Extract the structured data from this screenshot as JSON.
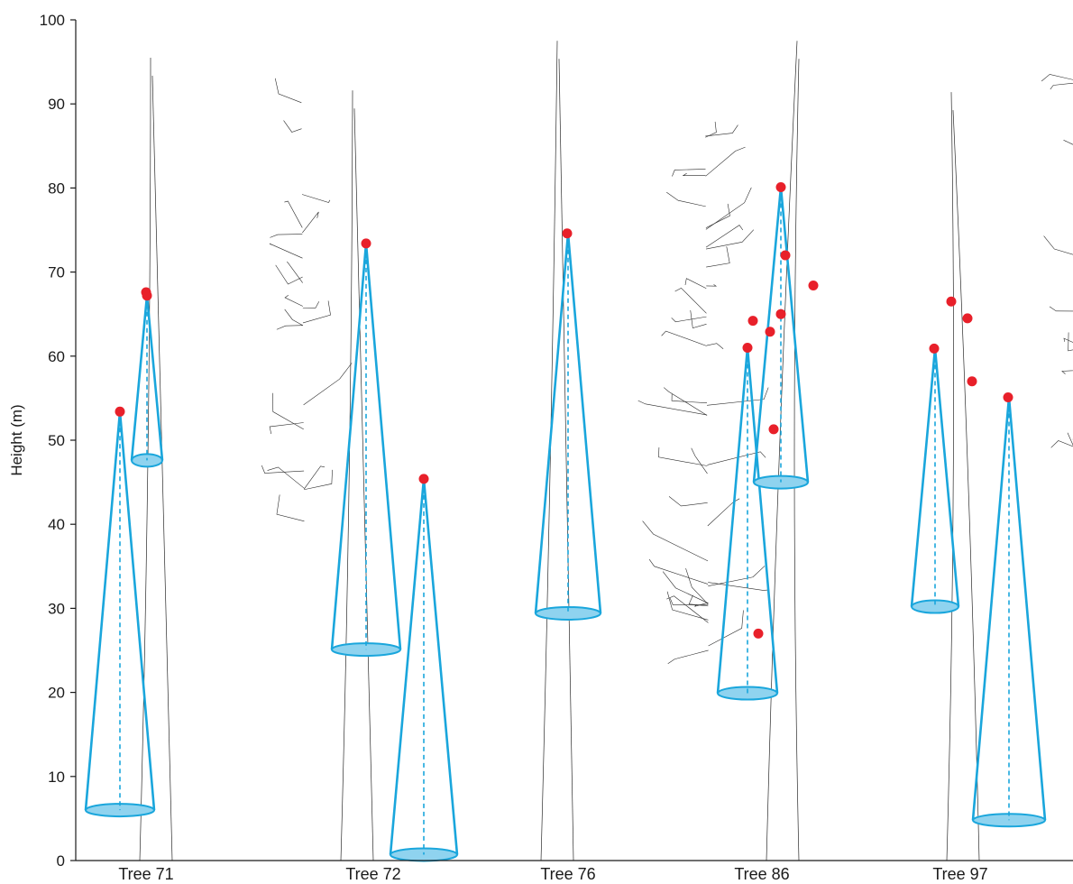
{
  "chart_data": {
    "type": "scatter",
    "ylabel": "Height (m)",
    "xlabel": "",
    "ylim": [
      0,
      100
    ],
    "yticks": [
      0,
      10,
      20,
      30,
      40,
      50,
      60,
      70,
      80,
      90,
      100
    ],
    "grid": false,
    "legend": "none",
    "categories": [
      "Tree 71",
      "Tree 72",
      "Tree 76",
      "Tree 86",
      "Tree 97"
    ],
    "colors": {
      "point": "#e8202a",
      "cone": "#1aa6dc",
      "cone_base_fill": "#8fd3ef",
      "axis": "#1a1a1a",
      "branches": "#2a2a2a"
    },
    "points": [
      {
        "tree": "Tree 71",
        "height": 53.4
      },
      {
        "tree": "Tree 71",
        "height": 67.6
      },
      {
        "tree": "Tree 71",
        "height": 67.2
      },
      {
        "tree": "Tree 72",
        "height": 73.4
      },
      {
        "tree": "Tree 72",
        "height": 45.4
      },
      {
        "tree": "Tree 76",
        "height": 74.6
      },
      {
        "tree": "Tree 86",
        "height": 80.1
      },
      {
        "tree": "Tree 86",
        "height": 72.0
      },
      {
        "tree": "Tree 86",
        "height": 68.4
      },
      {
        "tree": "Tree 86",
        "height": 65.0
      },
      {
        "tree": "Tree 86",
        "height": 64.2
      },
      {
        "tree": "Tree 86",
        "height": 62.9
      },
      {
        "tree": "Tree 86",
        "height": 61.0
      },
      {
        "tree": "Tree 86",
        "height": 51.3
      },
      {
        "tree": "Tree 86",
        "height": 27.0
      },
      {
        "tree": "Tree 97",
        "height": 66.5
      },
      {
        "tree": "Tree 97",
        "height": 64.5
      },
      {
        "tree": "Tree 97",
        "height": 60.9
      },
      {
        "tree": "Tree 97",
        "height": 57.0
      },
      {
        "tree": "Tree 97",
        "height": 55.1
      }
    ],
    "cones": [
      {
        "tree": "Tree 71",
        "apex_height": 53.4,
        "base_height": 6.0
      },
      {
        "tree": "Tree 71",
        "apex_height": 67.2,
        "base_height": 47.6
      },
      {
        "tree": "Tree 72",
        "apex_height": 73.4,
        "base_height": 25.1
      },
      {
        "tree": "Tree 72",
        "apex_height": 45.4,
        "base_height": 0.7
      },
      {
        "tree": "Tree 76",
        "apex_height": 74.6,
        "base_height": 29.4
      },
      {
        "tree": "Tree 86",
        "apex_height": 61.0,
        "base_height": 19.9
      },
      {
        "tree": "Tree 86",
        "apex_height": 80.1,
        "base_height": 45.0
      },
      {
        "tree": "Tree 97",
        "apex_height": 60.9,
        "base_height": 30.2
      },
      {
        "tree": "Tree 97",
        "apex_height": 55.1,
        "base_height": 4.8
      }
    ],
    "trunks": [
      {
        "tree": "Tree 71",
        "top_height": 95.5
      },
      {
        "tree": "Tree 72",
        "top_height": 91.6
      },
      {
        "tree": "Tree 76",
        "top_height": 97.5
      },
      {
        "tree": "Tree 86",
        "top_height": 97.5
      },
      {
        "tree": "Tree 97",
        "top_height": 91.4
      }
    ]
  }
}
